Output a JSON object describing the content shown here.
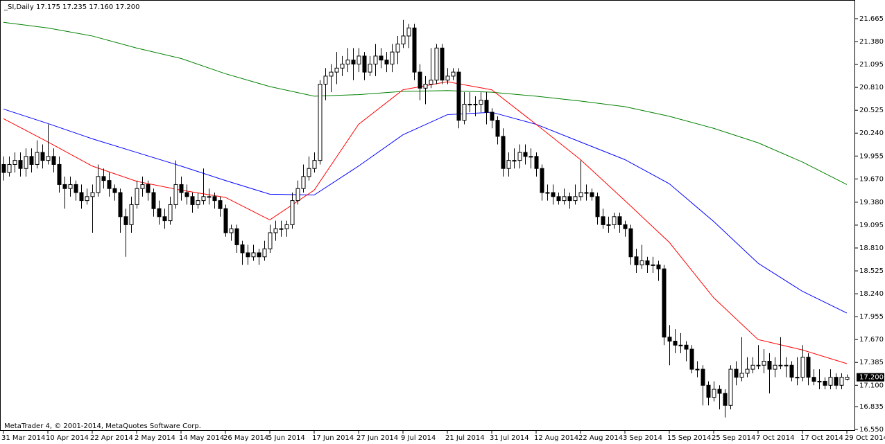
{
  "chart_data": {
    "type": "candlestick",
    "title": "_SI,Daily  17.175 17.235 17.160 17.200",
    "footer": "MetaTrader 4, © 2001-2014, MetaQuotes Software Corp.",
    "up_color": "#ffffff",
    "down_color": "#000000",
    "categories": [
      "31 Mar 2014",
      null,
      null,
      null,
      null,
      null,
      null,
      null,
      "10 Apr 2014",
      null,
      null,
      null,
      null,
      null,
      null,
      null,
      "22 Apr 2014",
      null,
      null,
      null,
      null,
      null,
      null,
      null,
      "2 May 2014",
      null,
      null,
      null,
      null,
      null,
      null,
      null,
      "14 May 2014",
      null,
      null,
      null,
      null,
      null,
      null,
      null,
      "26 May 2014",
      null,
      null,
      null,
      null,
      null,
      null,
      null,
      "5 Jun 2014",
      null,
      null,
      null,
      null,
      null,
      null,
      null,
      "17 Jun 2014",
      null,
      null,
      null,
      null,
      null,
      null,
      null,
      "27 Jun 2014",
      null,
      null,
      null,
      null,
      null,
      null,
      null,
      "9 Jul 2014",
      null,
      null,
      null,
      null,
      null,
      null,
      null,
      "21 Jul 2014",
      null,
      null,
      null,
      null,
      null,
      null,
      null,
      "31 Jul 2014",
      null,
      null,
      null,
      null,
      null,
      null,
      null,
      "12 Aug 2014",
      null,
      null,
      null,
      null,
      null,
      null,
      null,
      "22 Aug 2014",
      null,
      null,
      null,
      null,
      null,
      null,
      null,
      "3 Sep 2014",
      null,
      null,
      null,
      null,
      null,
      null,
      null,
      "15 Sep 2014",
      null,
      null,
      null,
      null,
      null,
      null,
      null,
      "25 Sep 2014",
      null,
      null,
      null,
      null,
      null,
      null,
      null,
      "7 Oct 2014",
      null,
      null,
      null,
      null,
      null,
      null,
      null,
      "17 Oct 2014",
      null,
      null,
      null,
      null,
      null,
      null,
      null,
      "29 Oct 2014"
    ],
    "ohlc": [
      [
        19.85,
        19.95,
        19.65,
        19.75
      ],
      [
        19.75,
        19.95,
        19.7,
        19.85
      ],
      [
        19.85,
        20.0,
        19.75,
        19.9
      ],
      [
        19.9,
        20.0,
        19.7,
        19.8
      ],
      [
        19.8,
        20.05,
        19.7,
        19.95
      ],
      [
        19.95,
        20.05,
        19.75,
        19.85
      ],
      [
        19.85,
        20.15,
        19.8,
        20.0
      ],
      [
        20.0,
        20.1,
        19.8,
        19.9
      ],
      [
        19.9,
        20.35,
        19.85,
        19.95
      ],
      [
        19.95,
        20.05,
        19.75,
        19.85
      ],
      [
        19.85,
        19.95,
        19.5,
        19.6
      ],
      [
        19.6,
        19.7,
        19.3,
        19.55
      ],
      [
        19.55,
        19.7,
        19.45,
        19.6
      ],
      [
        19.6,
        19.65,
        19.4,
        19.5
      ],
      [
        19.5,
        19.6,
        19.3,
        19.4
      ],
      [
        19.4,
        19.55,
        19.35,
        19.45
      ],
      [
        19.45,
        19.6,
        19.0,
        19.5
      ],
      [
        19.5,
        19.85,
        19.45,
        19.7
      ],
      [
        19.7,
        19.8,
        19.55,
        19.65
      ],
      [
        19.65,
        19.75,
        19.45,
        19.55
      ],
      [
        19.55,
        19.6,
        19.4,
        19.5
      ],
      [
        19.5,
        19.55,
        19.0,
        19.2
      ],
      [
        19.2,
        19.3,
        18.7,
        19.1
      ],
      [
        19.1,
        19.45,
        19.0,
        19.35
      ],
      [
        19.35,
        19.65,
        19.3,
        19.55
      ],
      [
        19.55,
        19.7,
        19.45,
        19.6
      ],
      [
        19.6,
        19.65,
        19.4,
        19.5
      ],
      [
        19.5,
        19.55,
        19.2,
        19.3
      ],
      [
        19.3,
        19.4,
        19.1,
        19.2
      ],
      [
        19.2,
        19.3,
        19.05,
        19.15
      ],
      [
        19.15,
        19.45,
        19.1,
        19.35
      ],
      [
        19.35,
        19.9,
        19.3,
        19.6
      ],
      [
        19.6,
        19.7,
        19.4,
        19.5
      ],
      [
        19.5,
        19.6,
        19.35,
        19.45
      ],
      [
        19.45,
        19.5,
        19.25,
        19.35
      ],
      [
        19.35,
        19.5,
        19.3,
        19.4
      ],
      [
        19.4,
        19.8,
        19.35,
        19.45
      ],
      [
        19.45,
        19.55,
        19.35,
        19.45
      ],
      [
        19.45,
        19.5,
        19.3,
        19.4
      ],
      [
        19.4,
        19.45,
        19.2,
        19.3
      ],
      [
        19.3,
        19.35,
        18.95,
        19.0
      ],
      [
        19.0,
        19.1,
        18.9,
        19.05
      ],
      [
        19.05,
        19.1,
        18.75,
        18.85
      ],
      [
        18.85,
        18.9,
        18.6,
        18.75
      ],
      [
        18.75,
        18.85,
        18.6,
        18.7
      ],
      [
        18.7,
        18.85,
        18.65,
        18.75
      ],
      [
        18.75,
        18.8,
        18.6,
        18.7
      ],
      [
        18.7,
        18.9,
        18.65,
        18.8
      ],
      [
        18.8,
        19.1,
        18.75,
        19.0
      ],
      [
        19.0,
        19.15,
        18.9,
        19.05
      ],
      [
        19.05,
        19.15,
        18.95,
        19.05
      ],
      [
        19.05,
        19.15,
        18.95,
        19.1
      ],
      [
        19.1,
        19.5,
        19.05,
        19.4
      ],
      [
        19.4,
        19.65,
        19.35,
        19.55
      ],
      [
        19.55,
        19.85,
        19.5,
        19.7
      ],
      [
        19.7,
        19.95,
        19.65,
        19.8
      ],
      [
        19.8,
        20.0,
        19.75,
        19.9
      ],
      [
        19.9,
        20.9,
        19.85,
        20.85
      ],
      [
        20.85,
        21.05,
        20.65,
        20.95
      ],
      [
        20.95,
        21.1,
        20.75,
        21.0
      ],
      [
        21.0,
        21.25,
        20.85,
        21.05
      ],
      [
        21.05,
        21.2,
        20.95,
        21.1
      ],
      [
        21.1,
        21.3,
        21.0,
        21.15
      ],
      [
        21.15,
        21.3,
        20.9,
        21.1
      ],
      [
        21.1,
        21.3,
        21.0,
        21.2
      ],
      [
        21.2,
        21.25,
        20.9,
        21.0
      ],
      [
        21.0,
        21.2,
        20.95,
        21.1
      ],
      [
        21.1,
        21.35,
        20.95,
        21.2
      ],
      [
        21.2,
        21.3,
        21.05,
        21.15
      ],
      [
        21.15,
        21.25,
        21.0,
        21.1
      ],
      [
        21.1,
        21.35,
        21.0,
        21.25
      ],
      [
        21.25,
        21.45,
        21.1,
        21.35
      ],
      [
        21.35,
        21.65,
        21.3,
        21.45
      ],
      [
        21.45,
        21.6,
        21.3,
        21.55
      ],
      [
        21.55,
        21.6,
        20.9,
        21.0
      ],
      [
        21.0,
        21.1,
        20.65,
        20.8
      ],
      [
        20.8,
        20.95,
        20.6,
        20.85
      ],
      [
        20.85,
        21.3,
        20.8,
        20.9
      ],
      [
        20.9,
        21.35,
        20.85,
        21.3
      ],
      [
        21.3,
        21.35,
        20.85,
        20.9
      ],
      [
        20.9,
        21.05,
        20.85,
        20.95
      ],
      [
        20.95,
        21.05,
        20.9,
        21.0
      ],
      [
        21.0,
        21.05,
        20.3,
        20.4
      ],
      [
        20.4,
        20.75,
        20.35,
        20.6
      ],
      [
        20.6,
        20.75,
        20.5,
        20.6
      ],
      [
        20.6,
        20.7,
        20.45,
        20.6
      ],
      [
        20.6,
        20.75,
        20.5,
        20.65
      ],
      [
        20.65,
        20.75,
        20.35,
        20.5
      ],
      [
        20.5,
        20.55,
        20.3,
        20.4
      ],
      [
        20.4,
        20.45,
        20.1,
        20.2
      ],
      [
        20.2,
        20.3,
        19.7,
        19.8
      ],
      [
        19.8,
        20.0,
        19.7,
        19.9
      ],
      [
        19.9,
        20.05,
        19.8,
        19.9
      ],
      [
        19.9,
        20.1,
        19.8,
        20.0
      ],
      [
        20.0,
        20.1,
        19.85,
        19.95
      ],
      [
        19.95,
        20.05,
        19.8,
        19.95
      ],
      [
        19.95,
        20.0,
        19.7,
        19.8
      ],
      [
        19.8,
        19.85,
        19.4,
        19.5
      ],
      [
        19.5,
        19.6,
        19.4,
        19.5
      ],
      [
        19.5,
        19.6,
        19.35,
        19.45
      ],
      [
        19.45,
        19.5,
        19.35,
        19.4
      ],
      [
        19.4,
        19.55,
        19.35,
        19.45
      ],
      [
        19.45,
        19.5,
        19.3,
        19.4
      ],
      [
        19.4,
        19.6,
        19.35,
        19.45
      ],
      [
        19.45,
        19.9,
        19.4,
        19.5
      ],
      [
        19.5,
        19.6,
        19.4,
        19.5
      ],
      [
        19.5,
        19.55,
        19.4,
        19.45
      ],
      [
        19.45,
        19.5,
        19.1,
        19.2
      ],
      [
        19.2,
        19.3,
        19.05,
        19.1
      ],
      [
        19.1,
        19.2,
        19.0,
        19.1
      ],
      [
        19.1,
        19.25,
        19.05,
        19.2
      ],
      [
        19.2,
        19.25,
        19.0,
        19.1
      ],
      [
        19.1,
        19.15,
        18.95,
        19.05
      ],
      [
        19.05,
        19.1,
        18.6,
        18.7
      ],
      [
        18.7,
        18.8,
        18.5,
        18.6
      ],
      [
        18.6,
        18.85,
        18.55,
        18.65
      ],
      [
        18.65,
        18.7,
        18.5,
        18.6
      ],
      [
        18.6,
        18.7,
        18.5,
        18.6
      ],
      [
        18.6,
        18.65,
        18.4,
        18.55
      ],
      [
        18.55,
        18.6,
        17.6,
        17.7
      ],
      [
        17.7,
        17.85,
        17.35,
        17.65
      ],
      [
        17.65,
        17.8,
        17.5,
        17.6
      ],
      [
        17.6,
        17.75,
        17.5,
        17.6
      ],
      [
        17.6,
        17.65,
        17.4,
        17.55
      ],
      [
        17.55,
        17.6,
        17.25,
        17.3
      ],
      [
        17.3,
        17.4,
        17.2,
        17.3
      ],
      [
        17.3,
        17.35,
        16.85,
        17.1
      ],
      [
        17.1,
        17.15,
        16.85,
        16.95
      ],
      [
        16.95,
        17.15,
        16.9,
        17.05
      ],
      [
        17.05,
        17.1,
        16.8,
        17.0
      ],
      [
        17.0,
        17.05,
        16.7,
        16.85
      ],
      [
        16.85,
        17.35,
        16.8,
        17.3
      ],
      [
        17.3,
        17.4,
        17.1,
        17.2
      ],
      [
        17.2,
        17.7,
        17.15,
        17.25
      ],
      [
        17.25,
        17.45,
        17.2,
        17.3
      ],
      [
        17.3,
        17.45,
        17.25,
        17.35
      ],
      [
        17.35,
        17.6,
        17.3,
        17.35
      ],
      [
        17.35,
        17.55,
        17.25,
        17.4
      ],
      [
        17.4,
        17.5,
        17.0,
        17.3
      ],
      [
        17.3,
        17.45,
        17.2,
        17.35
      ],
      [
        17.35,
        17.7,
        17.3,
        17.35
      ],
      [
        17.35,
        17.45,
        17.2,
        17.35
      ],
      [
        17.35,
        17.4,
        17.15,
        17.2
      ],
      [
        17.2,
        17.45,
        17.1,
        17.2
      ],
      [
        17.2,
        17.6,
        17.15,
        17.45
      ],
      [
        17.45,
        17.5,
        17.1,
        17.2
      ],
      [
        17.2,
        17.3,
        17.1,
        17.15
      ],
      [
        17.15,
        17.3,
        17.05,
        17.15
      ],
      [
        17.15,
        17.2,
        17.05,
        17.1
      ],
      [
        17.1,
        17.3,
        17.05,
        17.2
      ],
      [
        17.2,
        17.25,
        17.05,
        17.1
      ],
      [
        17.1,
        17.25,
        17.05,
        17.2
      ],
      [
        17.175,
        17.235,
        17.16,
        17.2
      ]
    ],
    "series": [
      {
        "color": "#008000",
        "x": [
          0,
          8,
          16,
          24,
          32,
          40,
          48,
          56,
          64,
          72,
          80,
          88,
          96,
          104,
          112,
          120,
          128,
          136,
          144,
          152
        ],
        "values": [
          21.62,
          21.55,
          21.45,
          21.3,
          21.17,
          20.98,
          20.82,
          20.7,
          20.72,
          20.76,
          20.77,
          20.75,
          20.7,
          20.64,
          20.57,
          20.45,
          20.3,
          20.12,
          19.88,
          19.6
        ]
      },
      {
        "color": "#0000ff",
        "x": [
          0,
          8,
          16,
          24,
          32,
          40,
          48,
          56,
          64,
          72,
          80,
          88,
          96,
          104,
          112,
          120,
          128,
          136,
          144,
          152
        ],
        "values": [
          20.54,
          20.36,
          20.17,
          20.0,
          19.83,
          19.65,
          19.48,
          19.47,
          19.83,
          20.22,
          20.47,
          20.5,
          20.35,
          20.13,
          19.91,
          19.61,
          19.14,
          18.62,
          18.27,
          18.0
        ]
      },
      {
        "color": "#ff0000",
        "x": [
          0,
          8,
          16,
          24,
          32,
          40,
          48,
          56,
          64,
          72,
          80,
          88,
          96,
          104,
          112,
          120,
          128,
          136,
          144,
          152
        ],
        "values": [
          20.42,
          20.13,
          19.83,
          19.64,
          19.53,
          19.44,
          19.16,
          19.53,
          20.35,
          20.78,
          20.88,
          20.78,
          20.35,
          19.91,
          19.4,
          18.88,
          18.19,
          17.67,
          17.54,
          17.37
        ]
      }
    ],
    "ylim": [
      16.533,
      21.898
    ],
    "yticks": [
      21.665,
      {
        "value": 21.38,
        "label": "21.380"
      },
      21.095,
      {
        "value": 20.81,
        "label": "20.810"
      },
      20.525,
      {
        "value": 20.24,
        "label": "20.240"
      },
      19.955,
      {
        "value": 19.67,
        "label": "19.670"
      },
      {
        "value": 19.38,
        "label": "19.380"
      },
      19.095,
      {
        "value": 18.81,
        "label": "18.810"
      },
      18.525,
      {
        "value": 18.24,
        "label": "18.240"
      },
      17.955,
      {
        "value": 17.67,
        "label": "17.670"
      },
      17.385,
      {
        "value": 17.1,
        "label": "17.100"
      },
      16.835,
      {
        "value": 16.55,
        "label": "16.550"
      }
    ],
    "price_label": {
      "value": 17.2,
      "label": "17.200"
    }
  }
}
